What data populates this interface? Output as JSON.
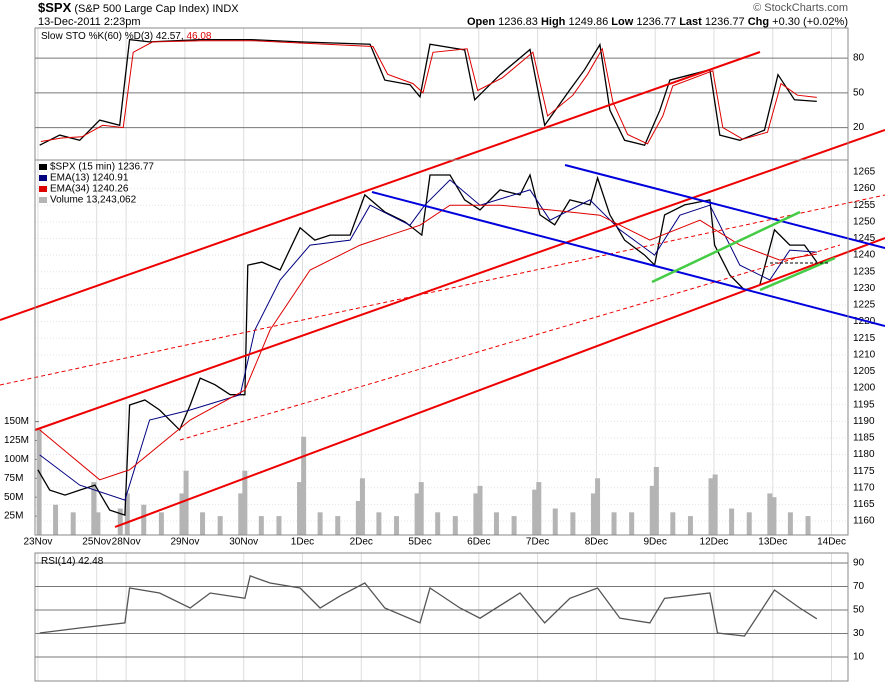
{
  "header": {
    "symbol": "$SPX",
    "name": "(S&P 500 Large Cap Index)",
    "exchange": "INDX",
    "date": "13-Dec-2011 2:23pm",
    "quote": [
      {
        "label": "Open",
        "value": "1236.83"
      },
      {
        "label": "High",
        "value": "1249.86"
      },
      {
        "label": "Low",
        "value": "1236.77"
      },
      {
        "label": "Last",
        "value": "1236.77"
      },
      {
        "label": "Chg",
        "value": "+0.30 (+0.02%)"
      }
    ],
    "credit": "© StockCharts.com"
  },
  "chart_data": [
    {
      "type": "line",
      "legend": "inline",
      "ylim": [
        -8,
        106
      ],
      "yticks": [
        20,
        50,
        80
      ],
      "series": [
        {
          "name": "Slow STO %K(60) %D(3) 42.57,",
          "color": "#000000",
          "x": [
            0.03,
            0.37,
            0.71,
            1.05,
            1.39,
            1.56,
            1.9,
            2.76,
            3.61,
            4.46,
            5.65,
            5.9,
            6.33,
            6.5,
            6.67,
            7.26,
            7.43,
            7.86,
            8.37,
            8.62,
            9.05,
            9.3,
            9.56,
            9.73,
            9.98,
            10.32,
            10.58,
            10.75,
            11.43,
            11.6,
            11.94,
            12.36,
            12.59,
            12.87,
            13.25
          ],
          "values": [
            4.8,
            13.5,
            9,
            26.5,
            22,
            96,
            94,
            96,
            96,
            94,
            92,
            61,
            57,
            46.5,
            92,
            87,
            44,
            65.7,
            87.4,
            22,
            52.6,
            70,
            91.7,
            35,
            9,
            4.8,
            35,
            61,
            70,
            13.5,
            9,
            17.8,
            65.7,
            44,
            42.6
          ]
        },
        {
          "name": "46.08",
          "color": "#dd0000",
          "x": [
            0.05,
            0.4,
            0.75,
            1.1,
            1.45,
            1.62,
            1.95,
            2.8,
            3.65,
            4.5,
            5.7,
            5.95,
            6.38,
            6.55,
            6.72,
            7.3,
            7.48,
            7.9,
            8.42,
            8.67,
            9.1,
            9.35,
            9.6,
            9.78,
            10.03,
            10.37,
            10.63,
            10.8,
            11.48,
            11.65,
            11.99,
            12.41,
            12.64,
            12.92,
            13.25
          ],
          "values": [
            8,
            11,
            12,
            22,
            20,
            85,
            94,
            95,
            95,
            93,
            90,
            66,
            58,
            50,
            85,
            88,
            52,
            63,
            85,
            30,
            48,
            66,
            88,
            42,
            14,
            6,
            30,
            56,
            69,
            20,
            10,
            16,
            58,
            48,
            46.1
          ]
        }
      ]
    },
    {
      "type": "line",
      "legend": "stacked",
      "xlim": [
        -0.05,
        13.78
      ],
      "xticks": [
        {
          "value": 0,
          "label": "23Nov"
        },
        {
          "value": 1,
          "label": "25Nov"
        },
        {
          "value": 1.5,
          "label": "28Nov"
        },
        {
          "value": 2.5,
          "label": "29Nov"
        },
        {
          "value": 3.5,
          "label": "30Nov"
        },
        {
          "value": 4.5,
          "label": "1Dec"
        },
        {
          "value": 5.5,
          "label": "2Dec"
        },
        {
          "value": 6.5,
          "label": "5Dec"
        },
        {
          "value": 7.5,
          "label": "6Dec"
        },
        {
          "value": 8.5,
          "label": "7Dec"
        },
        {
          "value": 9.5,
          "label": "8Dec"
        },
        {
          "value": 10.5,
          "label": "9Dec"
        },
        {
          "value": 11.5,
          "label": "12Dec"
        },
        {
          "value": 12.5,
          "label": "13Dec"
        },
        {
          "value": 13.5,
          "label": "14Dec"
        }
      ],
      "ylim": [
        1155.8,
        1268.6
      ],
      "yticks": [
        1160,
        1165,
        1170,
        1175,
        1180,
        1185,
        1190,
        1195,
        1200,
        1205,
        1210,
        1215,
        1220,
        1225,
        1230,
        1235,
        1240,
        1245,
        1250,
        1255,
        1260,
        1265
      ],
      "y2lim": [
        0,
        496000000
      ],
      "y2ticks": [
        {
          "value": 25000000,
          "label": "25M"
        },
        {
          "value": 50000000,
          "label": "50M"
        },
        {
          "value": 75000000,
          "label": "75M"
        },
        {
          "value": 100000000,
          "label": "100M"
        },
        {
          "value": 125000000,
          "label": "125M"
        },
        {
          "value": 150000000,
          "label": "150M"
        }
      ],
      "series": [
        {
          "name": "$SPX (15 min) 1236.77",
          "color": "#000000",
          "x": [
            0.0,
            0.2,
            0.46,
            0.71,
            0.97,
            1.22,
            1.48,
            1.56,
            1.82,
            2.07,
            2.41,
            2.59,
            2.76,
            3.01,
            3.27,
            3.52,
            3.57,
            3.81,
            4.12,
            4.46,
            4.71,
            4.97,
            5.31,
            5.56,
            5.9,
            6.24,
            6.53,
            6.67,
            7.01,
            7.26,
            7.52,
            7.86,
            8.2,
            8.37,
            8.54,
            8.79,
            9.05,
            9.39,
            9.52,
            9.73,
            9.98,
            10.32,
            10.49,
            10.66,
            11.0,
            11.43,
            11.51,
            11.77,
            12.02,
            12.28,
            12.53,
            12.79,
            13.04,
            13.25
          ],
          "values": [
            1175.4,
            1169.3,
            1167.8,
            1169.3,
            1170.8,
            1163.3,
            1161.8,
            1194.9,
            1196.4,
            1193.4,
            1187.4,
            1194.9,
            1203,
            1201,
            1198,
            1198,
            1237,
            1237.9,
            1235.5,
            1248.2,
            1244.5,
            1246,
            1246,
            1258.1,
            1253,
            1250,
            1246,
            1264.1,
            1264.1,
            1256.6,
            1253.6,
            1259.6,
            1258.1,
            1264.1,
            1252.1,
            1249.1,
            1256.6,
            1255.1,
            1263.2,
            1252.1,
            1244.5,
            1240,
            1237,
            1252.1,
            1255.1,
            1256.6,
            1243,
            1234,
            1229.5,
            1231,
            1247.6,
            1243,
            1243,
            1237.9
          ]
        },
        {
          "name": "EMA(13) 1240.91",
          "color": "#000080",
          "x": [
            0.03,
            0.71,
            1.48,
            1.9,
            2.59,
            3.44,
            3.69,
            4.12,
            4.63,
            5.31,
            5.65,
            6.33,
            6.58,
            7.01,
            7.52,
            8.37,
            8.71,
            9.39,
            9.9,
            10.49,
            10.92,
            11.43,
            11.94,
            12.45,
            12.79,
            13.25
          ],
          "values": [
            1179.9,
            1170.8,
            1166.3,
            1190.4,
            1193.4,
            1198,
            1217.5,
            1232.5,
            1243,
            1244.5,
            1255,
            1249,
            1255,
            1262.6,
            1255,
            1259.6,
            1250.5,
            1256.6,
            1247.6,
            1240,
            1252,
            1255,
            1237,
            1232.5,
            1241.5,
            1240.9
          ]
        },
        {
          "name": "EMA(34) 1240.26",
          "color": "#dd0000",
          "x": [
            0.03,
            1.05,
            1.56,
            2.59,
            3.52,
            3.95,
            4.63,
            5.48,
            6.5,
            7.01,
            7.86,
            8.71,
            9.56,
            10.41,
            11.26,
            11.94,
            12.62,
            13.25
          ],
          "values": [
            1187.4,
            1172.4,
            1175.4,
            1190.4,
            1199.4,
            1217.5,
            1235.5,
            1243,
            1249,
            1255,
            1255,
            1253.6,
            1252,
            1244.5,
            1250.5,
            1243,
            1238.5,
            1240.3
          ]
        },
        {
          "name": "Volume 13,243,062",
          "color": "#b4b4b4",
          "type": "bar",
          "axis": "y2",
          "x": [
            0.02,
            0.3,
            0.6,
            0.95,
            1.02,
            1.4,
            1.52,
            1.8,
            2.1,
            2.45,
            2.52,
            2.8,
            3.1,
            3.45,
            3.52,
            3.8,
            4.1,
            4.45,
            4.52,
            4.8,
            5.1,
            5.45,
            5.52,
            5.8,
            6.1,
            6.45,
            6.52,
            6.8,
            7.1,
            7.45,
            7.52,
            7.8,
            8.1,
            8.45,
            8.52,
            8.8,
            9.1,
            9.45,
            9.52,
            9.8,
            10.1,
            10.45,
            10.52,
            10.8,
            11.1,
            11.45,
            11.52,
            11.8,
            12.1,
            12.45,
            12.52,
            12.8,
            13.1
          ],
          "values": [
            140000000,
            40000000,
            30000000,
            70000000,
            30000000,
            35000000,
            55000000,
            40000000,
            30000000,
            55000000,
            85000000,
            30000000,
            25000000,
            55000000,
            85000000,
            25000000,
            25000000,
            70000000,
            130000000,
            30000000,
            25000000,
            45000000,
            75000000,
            30000000,
            25000000,
            55000000,
            70000000,
            30000000,
            25000000,
            55000000,
            65000000,
            30000000,
            25000000,
            60000000,
            70000000,
            35000000,
            30000000,
            55000000,
            75000000,
            30000000,
            30000000,
            65000000,
            90000000,
            30000000,
            25000000,
            75000000,
            80000000,
            35000000,
            30000000,
            55000000,
            50000000,
            30000000,
            25000000
          ]
        }
      ]
    },
    {
      "type": "line",
      "legend": "inline",
      "ylim": [
        -10.4,
        98.5
      ],
      "yticks": [
        10,
        30,
        50,
        70,
        90
      ],
      "series": [
        {
          "name": "RSI(14) 42.48",
          "color": "#555555",
          "x": [
            0.03,
            0.71,
            1.48,
            1.56,
            2.07,
            2.59,
            2.93,
            3.52,
            3.61,
            3.95,
            4.46,
            4.8,
            5.14,
            5.56,
            5.9,
            6.5,
            6.67,
            7.18,
            7.52,
            8.2,
            8.62,
            9.05,
            9.52,
            9.9,
            10.41,
            10.66,
            11.43,
            11.56,
            12.02,
            12.53,
            12.96,
            13.25
          ],
          "values": [
            30.4,
            34.7,
            39,
            68.7,
            64.5,
            51.7,
            64.5,
            60,
            79,
            73,
            68.7,
            51.7,
            62,
            73,
            51.7,
            39,
            68.7,
            51.7,
            43,
            64.5,
            39,
            60,
            68.7,
            43,
            39,
            60,
            64.5,
            30.4,
            27.9,
            67,
            51.7,
            42.5
          ]
        }
      ]
    }
  ]
}
